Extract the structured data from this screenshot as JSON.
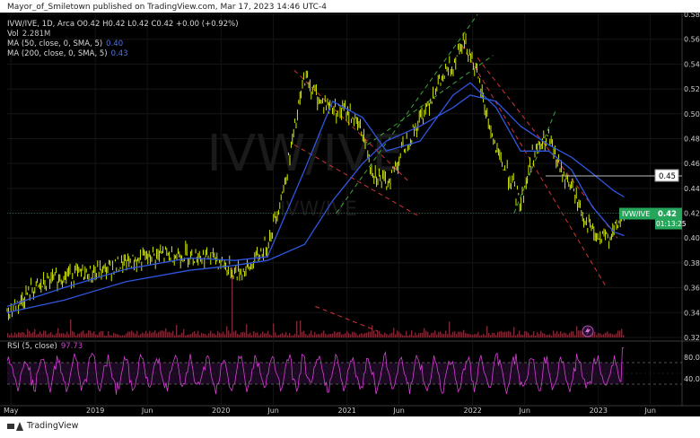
{
  "header": {
    "publish_line": "Mayor_of_Smiletown published on TradingView.com, Mar 17, 2023 14:46 UTC-4"
  },
  "legend": {
    "symbol_line": "IVW/IVE, 1D, Arca  O0.42  H0.42  L0.42  C0.42  +0.00 (+0.92%)",
    "volume_label": "Vol",
    "volume_value": "2.281M",
    "ma50_label": "MA (50, close, 0, SMA, 5)",
    "ma50_value": "0.40",
    "ma200_label": "MA (200, close, 0, SMA, 5)",
    "ma200_value": "0.43",
    "rsi_label": "RSI (5, close)",
    "rsi_value": "97.73"
  },
  "watermark": {
    "symbol": "IVW/IVE",
    "sub": "IVW/IVE"
  },
  "footer": {
    "brand": "TradingView"
  },
  "colors": {
    "background": "#000000",
    "candles": "#e6ff00",
    "ma": "#2f56e0",
    "rsi": "#d63fd6",
    "trendline_red": "#d6323a",
    "trendline_green": "#3aa83a",
    "price_badge": "#26a65b",
    "volume": "#7a2a34"
  },
  "chart_data": {
    "type": "line",
    "symbol": "IVW/IVE",
    "interval": "1D",
    "exchange": "Arca",
    "y_ticks": [
      "0.58",
      "0.56",
      "0.54",
      "0.52",
      "0.50",
      "0.48",
      "0.46",
      "0.44",
      "0.42",
      "0.40",
      "0.38",
      "0.36",
      "0.34",
      "0.32"
    ],
    "ylim": [
      0.32,
      0.58
    ],
    "x_ticks": [
      "May",
      "2019",
      "Jun",
      "2020",
      "Jun",
      "2021",
      "Jun",
      "2022",
      "Jun",
      "2023",
      "Jun"
    ],
    "x_tick_dates": [
      "2018-05-01",
      "2019-01-01",
      "2019-06-01",
      "2020-01-01",
      "2020-06-01",
      "2021-01-01",
      "2021-06-01",
      "2022-01-01",
      "2022-06-01",
      "2023-01-01",
      "2023-06-01"
    ],
    "price_series": {
      "name": "IVW/IVE",
      "x": [
        "2018-04-20",
        "2018-07-01",
        "2018-10-01",
        "2019-01-01",
        "2019-04-01",
        "2019-07-01",
        "2019-10-01",
        "2019-12-15",
        "2020-02-10",
        "2020-03-20",
        "2020-05-15",
        "2020-07-01",
        "2020-08-31",
        "2020-10-15",
        "2020-11-20",
        "2021-01-10",
        "2021-02-15",
        "2021-03-15",
        "2021-04-25",
        "2021-06-10",
        "2021-08-01",
        "2021-09-15",
        "2021-11-05",
        "2021-12-01",
        "2021-12-25",
        "2022-01-25",
        "2022-03-10",
        "2022-04-15",
        "2022-05-20",
        "2022-06-25",
        "2022-08-10",
        "2022-09-10",
        "2022-10-15",
        "2022-11-15",
        "2022-12-15",
        "2023-01-05",
        "2023-02-15",
        "2023-03-17"
      ],
      "y": [
        0.34,
        0.358,
        0.37,
        0.372,
        0.38,
        0.386,
        0.387,
        0.384,
        0.372,
        0.375,
        0.395,
        0.44,
        0.53,
        0.51,
        0.505,
        0.5,
        0.485,
        0.455,
        0.442,
        0.47,
        0.495,
        0.52,
        0.54,
        0.56,
        0.55,
        0.518,
        0.47,
        0.45,
        0.428,
        0.468,
        0.48,
        0.456,
        0.441,
        0.42,
        0.405,
        0.397,
        0.405,
        0.42
      ]
    },
    "ma50": {
      "name": "MA (50, close, 0, SMA, 5)",
      "x": [
        "2018-04-20",
        "2018-10-01",
        "2019-04-01",
        "2019-10-01",
        "2020-02-10",
        "2020-05-15",
        "2020-08-31",
        "2020-11-20",
        "2021-02-15",
        "2021-04-25",
        "2021-08-01",
        "2021-11-05",
        "2021-12-25",
        "2022-03-10",
        "2022-05-20",
        "2022-08-10",
        "2022-10-15",
        "2022-12-15",
        "2023-02-15",
        "2023-03-17"
      ],
      "y": [
        0.345,
        0.36,
        0.375,
        0.384,
        0.382,
        0.385,
        0.455,
        0.51,
        0.497,
        0.47,
        0.478,
        0.515,
        0.525,
        0.505,
        0.47,
        0.47,
        0.455,
        0.425,
        0.405,
        0.402
      ]
    },
    "ma200": {
      "name": "MA (200, close, 0, SMA, 5)",
      "x": [
        "2018-04-20",
        "2018-10-01",
        "2019-04-01",
        "2019-10-01",
        "2020-02-10",
        "2020-05-15",
        "2020-08-31",
        "2020-11-20",
        "2021-02-15",
        "2021-04-25",
        "2021-08-01",
        "2021-11-05",
        "2021-12-25",
        "2022-03-10",
        "2022-05-20",
        "2022-08-10",
        "2022-10-15",
        "2022-12-15",
        "2023-02-15",
        "2023-03-17"
      ],
      "y": [
        0.34,
        0.35,
        0.365,
        0.374,
        0.378,
        0.382,
        0.395,
        0.43,
        0.46,
        0.478,
        0.49,
        0.505,
        0.515,
        0.51,
        0.49,
        0.475,
        0.465,
        0.452,
        0.438,
        0.433
      ]
    },
    "horizontal_level": {
      "value": 0.45,
      "label": "0.45"
    },
    "last_price": {
      "value": 0.42,
      "label": "0.42",
      "symbol_label": "IVW/IVE",
      "countdown": "01:13:25"
    },
    "trendlines": [
      {
        "color": "red",
        "x": [
          "2020-08-01",
          "2021-07-01"
        ],
        "y": [
          0.535,
          0.445
        ]
      },
      {
        "color": "red",
        "x": [
          "2020-08-01",
          "2021-08-01"
        ],
        "y": [
          0.475,
          0.417
        ]
      },
      {
        "color": "red",
        "x": [
          "2020-10-01",
          "2021-04-01"
        ],
        "y": [
          0.345,
          0.325
        ]
      },
      {
        "color": "green",
        "x": [
          "2020-12-01",
          "2022-01-15"
        ],
        "y": [
          0.42,
          0.58
        ]
      },
      {
        "color": "green",
        "x": [
          "2021-03-01",
          "2022-03-01"
        ],
        "y": [
          0.475,
          0.547
        ]
      },
      {
        "color": "green",
        "x": [
          "2022-05-01",
          "2022-09-01"
        ],
        "y": [
          0.42,
          0.504
        ]
      },
      {
        "color": "red",
        "x": [
          "2021-12-01",
          "2023-01-25"
        ],
        "y": [
          0.555,
          0.36
        ]
      },
      {
        "color": "red",
        "x": [
          "2022-01-15",
          "2023-02-25"
        ],
        "y": [
          0.545,
          0.4
        ]
      }
    ],
    "rsi": {
      "name": "RSI (5, close)",
      "last_value": 97.73,
      "y_ticks": [
        "80.00",
        "40.00"
      ],
      "ylim": [
        0,
        100
      ],
      "bands": [
        70,
        30
      ]
    },
    "volume": {
      "name": "Vol",
      "last_value": "2.281M"
    }
  }
}
